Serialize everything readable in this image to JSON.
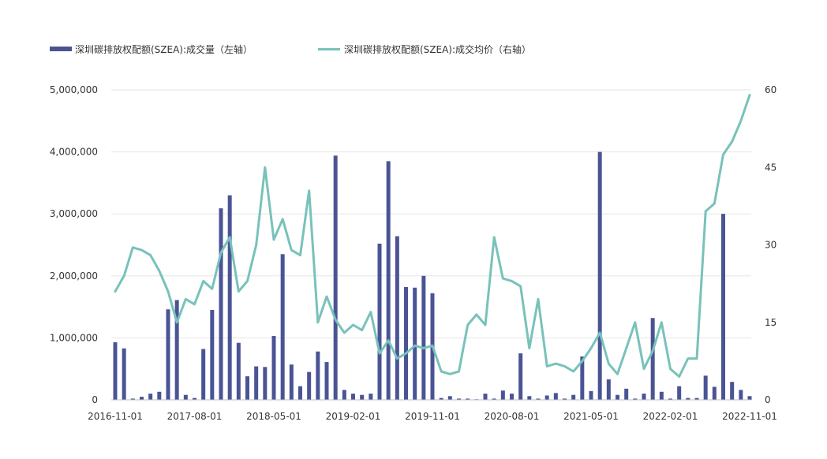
{
  "chart_data": {
    "type": "bar+line",
    "title": "",
    "legend": {
      "position": "top-left",
      "entries": [
        {
          "label": "深圳碳排放权配额(SZEA):成交量（左轴）",
          "mark": "bar",
          "color": "#4a5495"
        },
        {
          "label": "深圳碳排放权配额(SZEA):成交均价（右轴）",
          "mark": "line",
          "color": "#78c2ba"
        }
      ]
    },
    "x_tick_labels": [
      "2016-11-01",
      "2017-08-01",
      "2018-05-01",
      "2019-02-01",
      "2019-11-01",
      "2020-08-01",
      "2021-05-01",
      "2022-02-01",
      "2022-11-01"
    ],
    "y_left": {
      "range": [
        0,
        5000000
      ],
      "ticks": [
        0,
        1000000,
        2000000,
        3000000,
        4000000,
        5000000
      ],
      "tick_labels": [
        "0",
        "1,000,000",
        "2,000,000",
        "3,000,000",
        "4,000,000",
        "5,000,000"
      ]
    },
    "y_right": {
      "range": [
        0,
        60
      ],
      "ticks": [
        0,
        15,
        30,
        45,
        60
      ],
      "tick_labels": [
        "0",
        "15",
        "30",
        "45",
        "60"
      ]
    },
    "grid": {
      "horizontal": true,
      "vertical": false
    },
    "months": [
      "2016-11",
      "2016-12",
      "2017-01",
      "2017-02",
      "2017-03",
      "2017-04",
      "2017-05",
      "2017-06",
      "2017-07",
      "2017-08",
      "2017-09",
      "2017-10",
      "2017-11",
      "2017-12",
      "2018-01",
      "2018-02",
      "2018-03",
      "2018-04",
      "2018-05",
      "2018-06",
      "2018-07",
      "2018-08",
      "2018-09",
      "2018-10",
      "2018-11",
      "2018-12",
      "2019-01",
      "2019-02",
      "2019-03",
      "2019-04",
      "2019-05",
      "2019-06",
      "2019-07",
      "2019-08",
      "2019-09",
      "2019-10",
      "2019-11",
      "2019-12",
      "2020-01",
      "2020-02",
      "2020-03",
      "2020-04",
      "2020-05",
      "2020-06",
      "2020-07",
      "2020-08",
      "2020-09",
      "2020-10",
      "2020-11",
      "2020-12",
      "2021-01",
      "2021-02",
      "2021-03",
      "2021-04",
      "2021-05",
      "2021-06",
      "2021-07",
      "2021-08",
      "2021-09",
      "2021-10",
      "2021-11",
      "2021-12",
      "2022-01",
      "2022-02",
      "2022-03",
      "2022-04",
      "2022-05",
      "2022-06",
      "2022-07",
      "2022-08",
      "2022-09",
      "2022-10",
      "2022-11"
    ],
    "series": [
      {
        "name": "深圳碳排放权配额(SZEA):成交量（左轴）",
        "type": "bar",
        "axis": "left",
        "values": [
          930000,
          830000,
          20000,
          50000,
          100000,
          130000,
          1460000,
          1610000,
          80000,
          30000,
          820000,
          1450000,
          3090000,
          3300000,
          920000,
          380000,
          540000,
          530000,
          1030000,
          2350000,
          570000,
          220000,
          450000,
          780000,
          610000,
          3940000,
          160000,
          100000,
          80000,
          100000,
          2520000,
          3850000,
          2640000,
          1820000,
          1810000,
          2000000,
          1720000,
          30000,
          60000,
          20000,
          20000,
          10000,
          100000,
          20000,
          150000,
          100000,
          750000,
          60000,
          20000,
          70000,
          110000,
          20000,
          80000,
          700000,
          140000,
          4000000,
          330000,
          80000,
          180000,
          20000,
          100000,
          1320000,
          130000,
          20000,
          220000,
          30000,
          30000,
          390000,
          210000,
          3000000,
          290000,
          160000,
          60000
        ]
      },
      {
        "name": "深圳碳排放权配额(SZEA):成交均价（右轴）",
        "type": "line",
        "axis": "right",
        "values": [
          21,
          24,
          29.5,
          29,
          28,
          25,
          21,
          15,
          19.5,
          18.5,
          23,
          21.5,
          28.5,
          31.5,
          21,
          23,
          30,
          45,
          31,
          35,
          29,
          28,
          40.5,
          15,
          20,
          15.5,
          13,
          14.5,
          13.5,
          17,
          9,
          11.5,
          8,
          9,
          10.5,
          10,
          10.5,
          5.5,
          5,
          5.5,
          14.5,
          16.5,
          14.5,
          31.5,
          23.5,
          23,
          22,
          10,
          19.5,
          6.5,
          7,
          6.5,
          5.5,
          7.5,
          10,
          13,
          7,
          5,
          10,
          15,
          6,
          9.5,
          15,
          6,
          4.5,
          8,
          8,
          36.5,
          38,
          47.5,
          50,
          54,
          59
        ]
      }
    ]
  }
}
